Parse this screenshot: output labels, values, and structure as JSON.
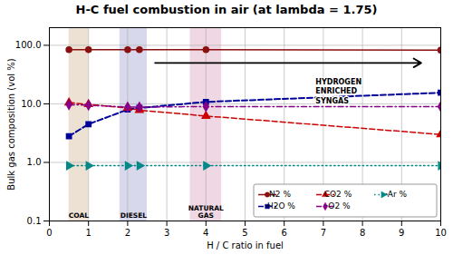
{
  "chart_data": {
    "type": "line",
    "title": "H-C fuel combustion in air (at lambda = 1.75)",
    "xlabel": "H / C ratio in fuel",
    "ylabel": "Bulk gas composition (vol %)",
    "x": [
      0.5,
      1.0,
      2.0,
      2.3,
      4.0,
      10.0
    ],
    "series": [
      {
        "name": "N2 %",
        "color": "#8B1010",
        "values": [
          84.0,
          84.5,
          84.5,
          84.5,
          84.0,
          83.0
        ],
        "marker": "circle",
        "line_style": "solid"
      },
      {
        "name": "·H2O %",
        "color": "#00009B",
        "values": [
          2.8,
          4.5,
          8.0,
          8.5,
          10.8,
          15.5
        ],
        "marker": "square",
        "line_style": "dashed"
      },
      {
        "name": "CO2 %",
        "color": "#CC0000",
        "values": [
          10.5,
          9.8,
          8.5,
          7.8,
          6.2,
          3.0
        ],
        "marker": "triangle-up",
        "line_style": "dashed"
      },
      {
        "name": "·O2 %",
        "color": "#880088",
        "values": [
          9.7,
          9.5,
          8.8,
          8.8,
          9.0,
          9.0
        ],
        "marker": "diamond",
        "line_style": "dashdot"
      },
      {
        "name": "·Ar %",
        "color": "#008888",
        "values": [
          0.88,
          0.88,
          0.88,
          0.88,
          0.88,
          0.88
        ],
        "marker": "triangle-right",
        "line_style": "dotted"
      }
    ],
    "regions": [
      {
        "label": "COAL",
        "x0": 0.5,
        "x1": 1.0,
        "color": "#c8a882"
      },
      {
        "label": "DIESEL",
        "x0": 1.8,
        "x1": 2.5,
        "color": "#9090c8"
      },
      {
        "label": "NATURAL\nGAS",
        "x0": 3.6,
        "x1": 4.4,
        "color": "#d090b0"
      }
    ],
    "arrows": [
      {
        "x1": 2.7,
        "x2": 9.5,
        "y": 50.0
      }
    ],
    "annotations": [
      {
        "text": "HYDROGEN\nENRICHED\nSYNGAS",
        "x": 6.8,
        "y": 28.0
      }
    ],
    "xlim": [
      0,
      10
    ],
    "xticks": [
      0,
      1,
      2,
      3,
      4,
      5,
      6,
      7,
      8,
      9,
      10
    ],
    "ylim": [
      0.1,
      200.0
    ],
    "yticks": [
      0.1,
      {
        "value": 1.0,
        "label": "1.0"
      },
      {
        "value": 10.0,
        "label": "10.0"
      },
      {
        "value": 100.0,
        "label": "100.0"
      }
    ],
    "log": "y",
    "grid": true,
    "legend": "lower right"
  }
}
